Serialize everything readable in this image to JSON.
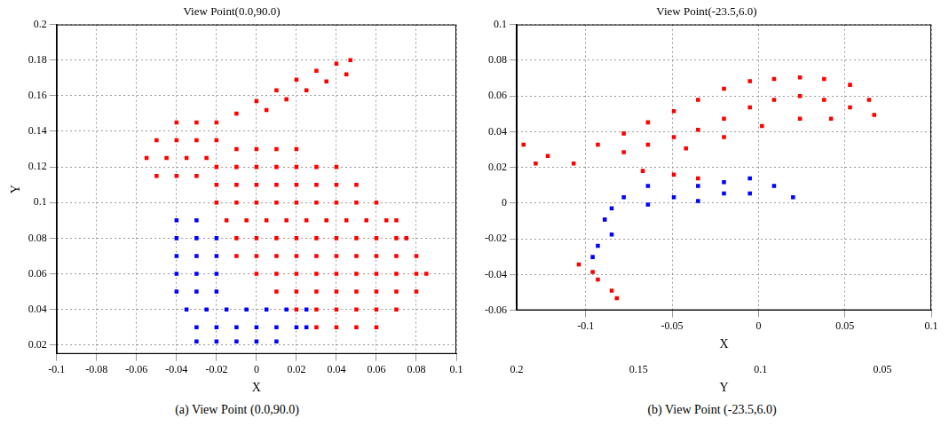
{
  "chart_data": [
    {
      "type": "scatter",
      "title": "View Point(0.0,90.0)",
      "caption": "(a) View Point (0.0,90.0)",
      "x_label": "X",
      "y_label": "Y",
      "xlim": [
        -0.1,
        0.1
      ],
      "xticks": [
        -0.1,
        -0.08,
        -0.06,
        -0.04,
        -0.02,
        0,
        0.02,
        0.04,
        0.06,
        0.08,
        0.1
      ],
      "ylim": [
        0.015,
        0.2
      ],
      "yticks": [
        0.02,
        0.04,
        0.06,
        0.08,
        0.1,
        0.12,
        0.14,
        0.16,
        0.18,
        0.2
      ],
      "grid": true,
      "marker": "square",
      "series": [
        {
          "color": "#ff0000",
          "values": [
            [
              -0.01,
              0.13
            ],
            [
              0,
              0.13
            ],
            [
              0.01,
              0.13
            ],
            [
              0.02,
              0.13
            ],
            [
              -0.02,
              0.12
            ],
            [
              -0.01,
              0.12
            ],
            [
              0,
              0.12
            ],
            [
              0.01,
              0.12
            ],
            [
              0.02,
              0.12
            ],
            [
              0.03,
              0.12
            ],
            [
              0.04,
              0.12
            ],
            [
              -0.02,
              0.11
            ],
            [
              -0.01,
              0.11
            ],
            [
              0,
              0.11
            ],
            [
              0.01,
              0.11
            ],
            [
              0.02,
              0.11
            ],
            [
              0.03,
              0.11
            ],
            [
              0.04,
              0.11
            ],
            [
              0.05,
              0.11
            ],
            [
              -0.02,
              0.1
            ],
            [
              -0.01,
              0.1
            ],
            [
              0,
              0.1
            ],
            [
              0.01,
              0.1
            ],
            [
              0.02,
              0.1
            ],
            [
              0.03,
              0.1
            ],
            [
              0.04,
              0.1
            ],
            [
              0.05,
              0.1
            ],
            [
              0.06,
              0.1
            ],
            [
              -0.015,
              0.09
            ],
            [
              -0.005,
              0.09
            ],
            [
              0.005,
              0.09
            ],
            [
              0.015,
              0.09
            ],
            [
              0.025,
              0.09
            ],
            [
              0.035,
              0.09
            ],
            [
              0.045,
              0.09
            ],
            [
              0.055,
              0.09
            ],
            [
              0.065,
              0.09
            ],
            [
              0.07,
              0.09
            ],
            [
              -0.01,
              0.08
            ],
            [
              0,
              0.08
            ],
            [
              0.01,
              0.08
            ],
            [
              0.02,
              0.08
            ],
            [
              0.03,
              0.08
            ],
            [
              0.04,
              0.08
            ],
            [
              0.05,
              0.08
            ],
            [
              0.06,
              0.08
            ],
            [
              0.07,
              0.08
            ],
            [
              0.075,
              0.08
            ],
            [
              -0.01,
              0.07
            ],
            [
              0,
              0.07
            ],
            [
              0.01,
              0.07
            ],
            [
              0.02,
              0.07
            ],
            [
              0.03,
              0.07
            ],
            [
              0.04,
              0.07
            ],
            [
              0.05,
              0.07
            ],
            [
              0.06,
              0.07
            ],
            [
              0.07,
              0.07
            ],
            [
              0.08,
              0.07
            ],
            [
              0,
              0.06
            ],
            [
              0.01,
              0.06
            ],
            [
              0.02,
              0.06
            ],
            [
              0.03,
              0.06
            ],
            [
              0.04,
              0.06
            ],
            [
              0.05,
              0.06
            ],
            [
              0.06,
              0.06
            ],
            [
              0.07,
              0.06
            ],
            [
              0.08,
              0.06
            ],
            [
              0.085,
              0.06
            ],
            [
              0.01,
              0.05
            ],
            [
              0.02,
              0.05
            ],
            [
              0.03,
              0.05
            ],
            [
              0.04,
              0.05
            ],
            [
              0.05,
              0.05
            ],
            [
              0.06,
              0.05
            ],
            [
              0.07,
              0.05
            ],
            [
              0.08,
              0.05
            ],
            [
              0.02,
              0.04
            ],
            [
              0.03,
              0.04
            ],
            [
              0.04,
              0.04
            ],
            [
              0.05,
              0.04
            ],
            [
              0.06,
              0.04
            ],
            [
              0.07,
              0.04
            ],
            [
              0.03,
              0.03
            ],
            [
              0.04,
              0.03
            ],
            [
              0.05,
              0.03
            ],
            [
              0.06,
              0.03
            ],
            [
              -0.04,
              0.145
            ],
            [
              -0.03,
              0.145
            ],
            [
              -0.02,
              0.145
            ],
            [
              -0.05,
              0.135
            ],
            [
              -0.04,
              0.135
            ],
            [
              -0.03,
              0.135
            ],
            [
              -0.02,
              0.135
            ],
            [
              -0.055,
              0.125
            ],
            [
              -0.045,
              0.125
            ],
            [
              -0.035,
              0.125
            ],
            [
              -0.025,
              0.125
            ],
            [
              -0.05,
              0.115
            ],
            [
              -0.04,
              0.115
            ],
            [
              -0.03,
              0.115
            ],
            [
              -0.01,
              0.15
            ],
            [
              0,
              0.157
            ],
            [
              0.01,
              0.163
            ],
            [
              0.02,
              0.169
            ],
            [
              0.03,
              0.174
            ],
            [
              0.04,
              0.178
            ],
            [
              0.047,
              0.18
            ],
            [
              0.005,
              0.152
            ],
            [
              0.015,
              0.158
            ],
            [
              0.025,
              0.163
            ],
            [
              0.035,
              0.168
            ],
            [
              0.045,
              0.172
            ]
          ]
        },
        {
          "color": "#0000ff",
          "values": [
            [
              -0.04,
              0.09
            ],
            [
              -0.03,
              0.09
            ],
            [
              -0.04,
              0.08
            ],
            [
              -0.03,
              0.08
            ],
            [
              -0.04,
              0.07
            ],
            [
              -0.03,
              0.07
            ],
            [
              -0.04,
              0.06
            ],
            [
              -0.03,
              0.06
            ],
            [
              -0.04,
              0.05
            ],
            [
              -0.03,
              0.05
            ],
            [
              -0.02,
              0.08
            ],
            [
              -0.02,
              0.07
            ],
            [
              -0.02,
              0.06
            ],
            [
              -0.02,
              0.05
            ],
            [
              -0.035,
              0.04
            ],
            [
              -0.025,
              0.04
            ],
            [
              -0.015,
              0.04
            ],
            [
              -0.005,
              0.04
            ],
            [
              0.005,
              0.04
            ],
            [
              0.015,
              0.04
            ],
            [
              0.025,
              0.04
            ],
            [
              -0.03,
              0.03
            ],
            [
              -0.02,
              0.03
            ],
            [
              -0.01,
              0.03
            ],
            [
              0,
              0.03
            ],
            [
              0.01,
              0.03
            ],
            [
              0.02,
              0.03
            ],
            [
              0.025,
              0.03
            ],
            [
              -0.03,
              0.022
            ],
            [
              -0.02,
              0.022
            ],
            [
              -0.01,
              0.022
            ],
            [
              0,
              0.022
            ],
            [
              0.01,
              0.022
            ]
          ]
        }
      ]
    },
    {
      "type": "scatter",
      "title": "View Point(-23.5,6.0)",
      "caption": "(b) View Point (-23.5,6.0)",
      "x_label": "X",
      "x2_label": "Y",
      "xlim": [
        -0.14,
        0.1
      ],
      "xticks": [
        -0.1,
        -0.05,
        0,
        0.05,
        0.1
      ],
      "x2lim": [
        0.2,
        0.03
      ],
      "x2ticks": [
        0.2,
        0.15,
        0.1,
        0.05
      ],
      "ylim": [
        -0.06,
        0.1
      ],
      "yticks": [
        -0.06,
        -0.04,
        -0.02,
        0,
        0.02,
        0.04,
        0.06,
        0.08,
        0.1
      ],
      "grid": true,
      "marker": "square",
      "series": [
        {
          "color": "#ff0000",
          "values": [
            [
              -0.136,
              0.0327
            ],
            [
              -0.122,
              0.0264
            ],
            [
              -0.107,
              0.0222
            ],
            [
              -0.129,
              0.0222
            ],
            [
              -0.093,
              0.0327
            ],
            [
              -0.078,
              0.039
            ],
            [
              -0.064,
              0.0452
            ],
            [
              -0.049,
              0.0515
            ],
            [
              -0.035,
              0.0578
            ],
            [
              -0.02,
              0.064
            ],
            [
              -0.005,
              0.0683
            ],
            [
              0.009,
              0.0695
            ],
            [
              0.024,
              0.0704
            ],
            [
              0.038,
              0.0695
            ],
            [
              0.053,
              0.0662
            ],
            [
              0.064,
              0.0578
            ],
            [
              -0.078,
              0.0285
            ],
            [
              -0.064,
              0.0327
            ],
            [
              -0.049,
              0.0369
            ],
            [
              -0.035,
              0.041
            ],
            [
              -0.02,
              0.0473
            ],
            [
              -0.005,
              0.0536
            ],
            [
              0.009,
              0.0578
            ],
            [
              0.024,
              0.0599
            ],
            [
              0.038,
              0.0578
            ],
            [
              0.053,
              0.0536
            ],
            [
              0.067,
              0.0494
            ],
            [
              -0.042,
              0.0306
            ],
            [
              -0.02,
              0.0369
            ],
            [
              0.002,
              0.0431
            ],
            [
              0.024,
              0.0473
            ],
            [
              0.042,
              0.0473
            ],
            [
              -0.067,
              0.018
            ],
            [
              -0.049,
              0.0159
            ],
            [
              -0.035,
              0.0138
            ],
            [
              -0.104,
              -0.0344
            ],
            [
              -0.096,
              -0.0386
            ],
            [
              -0.093,
              -0.0428
            ],
            [
              -0.085,
              -0.049
            ],
            [
              -0.082,
              -0.0532
            ]
          ]
        },
        {
          "color": "#0000ff",
          "values": [
            [
              -0.085,
              -0.0029
            ],
            [
              -0.078,
              0.0033
            ],
            [
              -0.064,
              0.0096
            ],
            [
              -0.049,
              0.0033
            ],
            [
              -0.035,
              0.0096
            ],
            [
              -0.02,
              0.0117
            ],
            [
              -0.005,
              0.0138
            ],
            [
              0.009,
              0.0096
            ],
            [
              0.02,
              0.0033
            ],
            [
              -0.035,
              0.0012
            ],
            [
              -0.02,
              0.0054
            ],
            [
              -0.005,
              0.0054
            ],
            [
              -0.064,
              -0.0008
            ],
            [
              -0.089,
              -0.0092
            ],
            [
              -0.085,
              -0.0176
            ],
            [
              -0.093,
              -0.0239
            ],
            [
              -0.096,
              -0.0302
            ]
          ]
        }
      ]
    }
  ]
}
